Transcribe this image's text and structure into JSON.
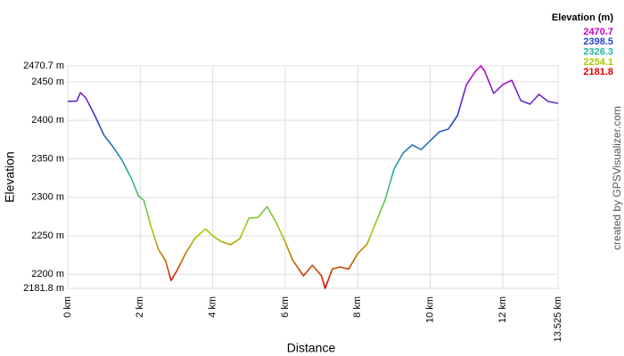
{
  "chart_data": {
    "type": "line",
    "x_label": "Distance",
    "y_label": "Elevation",
    "credit": "created by GPSVisualizer.com",
    "x": [
      0,
      0.25,
      0.35,
      0.5,
      0.75,
      1.0,
      1.25,
      1.5,
      1.75,
      1.95,
      2.1,
      2.3,
      2.5,
      2.7,
      2.85,
      3.0,
      3.25,
      3.5,
      3.8,
      4.0,
      4.25,
      4.5,
      4.75,
      5.0,
      5.25,
      5.5,
      5.75,
      6.0,
      6.2,
      6.5,
      6.75,
      7.0,
      7.1,
      7.3,
      7.5,
      7.75,
      8.0,
      8.25,
      8.5,
      8.75,
      9.0,
      9.25,
      9.5,
      9.75,
      10.0,
      10.25,
      10.5,
      10.75,
      11.0,
      11.25,
      11.4,
      11.5,
      11.75,
      12.0,
      12.25,
      12.5,
      12.75,
      13.0,
      13.25,
      13.525
    ],
    "series": [
      {
        "name": "Elevation",
        "values": [
          2424.5,
          2425,
          2436,
          2429,
          2406,
          2380.6,
          2365.5,
          2348,
          2325,
          2302,
          2296,
          2261.5,
          2232.6,
          2217.6,
          2192,
          2203.8,
          2227,
          2246.5,
          2259,
          2250,
          2242,
          2238.6,
          2246.5,
          2273,
          2274,
          2288,
          2267.3,
          2242,
          2218.8,
          2198,
          2211.8,
          2198,
          2181.8,
          2207,
          2209.5,
          2207,
          2227,
          2238.6,
          2267.3,
          2296,
          2336.6,
          2357.5,
          2368,
          2362,
          2373.6,
          2385,
          2388.7,
          2406,
          2446.4,
          2463.8,
          2470.7,
          2463.8,
          2434.9,
          2446.4,
          2452,
          2425.6,
          2421,
          2433.7,
          2424.5,
          2422
        ]
      }
    ],
    "xlim": [
      0,
      13.525
    ],
    "xticks": [
      {
        "value": 0,
        "label": "0 km"
      },
      {
        "value": 2,
        "label": "2 km"
      },
      {
        "value": 4,
        "label": "4 km"
      },
      {
        "value": 6,
        "label": "6 km"
      },
      {
        "value": 8,
        "label": "8 km"
      },
      {
        "value": 10,
        "label": "10 km"
      },
      {
        "value": 12,
        "label": "12 km"
      },
      {
        "value": 13.525,
        "label": "13.525 km"
      }
    ],
    "ylim": [
      2181.8,
      2470.7
    ],
    "yticks": [
      {
        "value": 2181.8,
        "label": "2181.8 m"
      },
      {
        "value": 2200,
        "label": "2200 m"
      },
      {
        "value": 2250,
        "label": "2250 m"
      },
      {
        "value": 2300,
        "label": "2300 m"
      },
      {
        "value": 2350,
        "label": "2350 m"
      },
      {
        "value": 2400,
        "label": "2400 m"
      },
      {
        "value": 2450,
        "label": "2450 m"
      },
      {
        "value": 2470.7,
        "label": "2470.7 m"
      }
    ],
    "grid": true,
    "legend": {
      "title": "Elevation (m)",
      "entries": [
        {
          "value": 2470.7,
          "color": "#cc00cc"
        },
        {
          "value": 2398.5,
          "color": "#2244cc"
        },
        {
          "value": 2326.3,
          "color": "#22b5a0"
        },
        {
          "value": 2254.1,
          "color": "#a8cc00"
        },
        {
          "value": 2181.8,
          "color": "#dd0000"
        }
      ]
    }
  }
}
